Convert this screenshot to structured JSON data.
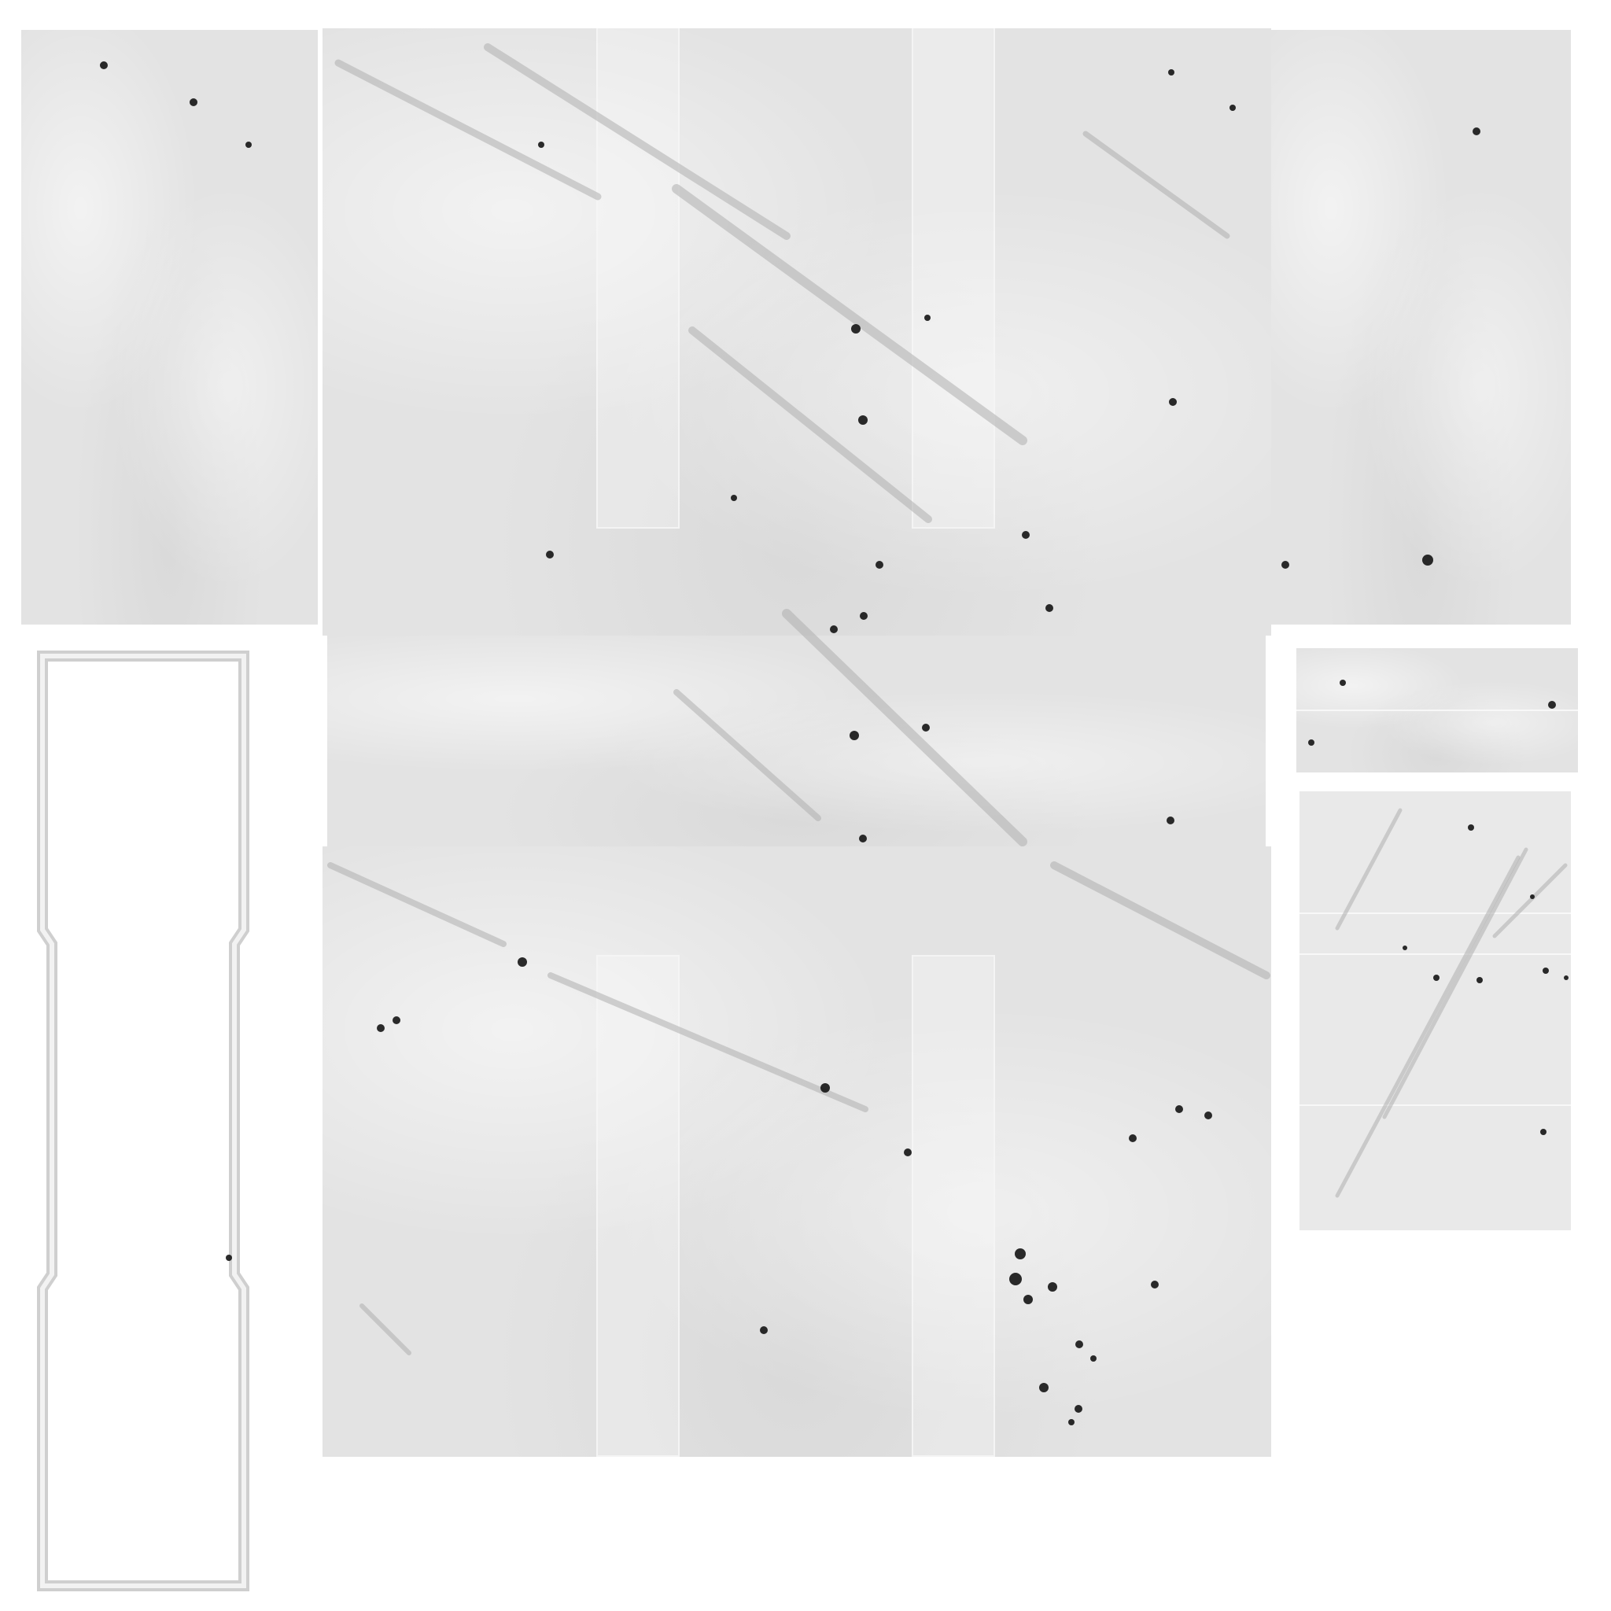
{
  "texture": {
    "base_color": "#e3e3e3",
    "background_color": "#ffffff",
    "scratch_color": "#b0b0b0",
    "speck_color": "#141414",
    "frame_color": "#d2d2d2"
  }
}
